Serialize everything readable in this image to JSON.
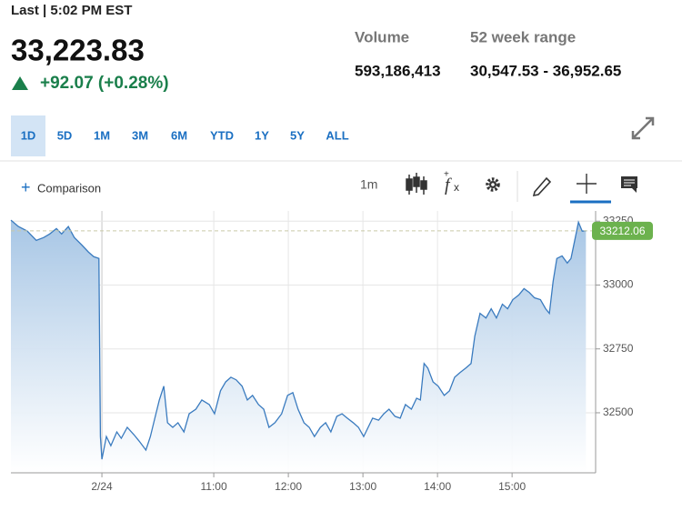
{
  "header": {
    "last_label": "Last | 5:02 PM EST",
    "price": "33,223.83",
    "change": "+92.07 (+0.28%)",
    "volume_label": "Volume",
    "volume": "593,186,413",
    "range_label": "52 week range",
    "range": "30,547.53 - 36,952.65"
  },
  "tabs": [
    "1D",
    "5D",
    "1M",
    "3M",
    "6M",
    "YTD",
    "1Y",
    "5Y",
    "ALL"
  ],
  "selected_tab": 0,
  "toolbar": {
    "comparison": "Comparison",
    "interval": "1m"
  },
  "chart_data": {
    "type": "line",
    "color": "#3a7bbf",
    "grid": true,
    "x": [
      8.28,
      8.38,
      8.5,
      8.62,
      8.72,
      8.8,
      8.89,
      8.96,
      9.05,
      9.13,
      9.23,
      9.32,
      9.39,
      9.46,
      9.48,
      9.5,
      9.56,
      9.62,
      9.7,
      9.76,
      9.84,
      9.93,
      10.0,
      10.09,
      10.15,
      10.21,
      10.27,
      10.33,
      10.38,
      10.45,
      10.52,
      10.6,
      10.67,
      10.76,
      10.84,
      10.94,
      11.01,
      11.09,
      11.16,
      11.23,
      11.3,
      11.38,
      11.45,
      11.52,
      11.6,
      11.67,
      11.74,
      11.82,
      11.91,
      11.99,
      12.06,
      12.13,
      12.21,
      12.28,
      12.35,
      12.43,
      12.5,
      12.57,
      12.65,
      12.72,
      12.79,
      12.87,
      12.94,
      13.01,
      13.07,
      13.13,
      13.21,
      13.28,
      13.35,
      13.43,
      13.5,
      13.57,
      13.65,
      13.72,
      13.77,
      13.82,
      13.87,
      13.94,
      14.01,
      14.09,
      14.16,
      14.23,
      14.3,
      14.38,
      14.45,
      14.5,
      14.57,
      14.65,
      14.72,
      14.79,
      14.87,
      14.94,
      15.01,
      15.09,
      15.16,
      15.23,
      15.3,
      15.38,
      15.45,
      15.5,
      15.55,
      15.6,
      15.67,
      15.74,
      15.79,
      15.84,
      15.89,
      15.94,
      15.99
    ],
    "values": [
      33254,
      33229,
      33211,
      33175,
      33186,
      33200,
      33221,
      33200,
      33229,
      33186,
      33157,
      33129,
      33111,
      33104,
      32407,
      32318,
      32407,
      32371,
      32425,
      32400,
      32443,
      32414,
      32389,
      32354,
      32407,
      32479,
      32550,
      32604,
      32461,
      32443,
      32461,
      32425,
      32496,
      32514,
      32550,
      32532,
      32496,
      32586,
      32621,
      32639,
      32629,
      32604,
      32550,
      32568,
      32532,
      32514,
      32443,
      32461,
      32496,
      32568,
      32579,
      32514,
      32461,
      32443,
      32407,
      32443,
      32461,
      32425,
      32486,
      32496,
      32479,
      32461,
      32443,
      32407,
      32443,
      32479,
      32471,
      32496,
      32514,
      32486,
      32479,
      32532,
      32514,
      32557,
      32550,
      32693,
      32675,
      32621,
      32604,
      32568,
      32586,
      32639,
      32657,
      32675,
      32693,
      32800,
      32889,
      32871,
      32907,
      32871,
      32925,
      32907,
      32943,
      32961,
      32986,
      32971,
      32950,
      32943,
      32907,
      32889,
      33014,
      33104,
      33114,
      33086,
      33104,
      33175,
      33246,
      33211,
      33212
    ],
    "xlim": [
      8.28,
      16.12
    ],
    "xticks": [
      {
        "value": 9.5,
        "label": "2/24"
      },
      {
        "value": 11,
        "label": "11:00"
      },
      {
        "value": 12,
        "label": "12:00"
      },
      {
        "value": 13,
        "label": "13:00"
      },
      {
        "value": 14,
        "label": "14:00"
      },
      {
        "value": 15,
        "label": "15:00"
      }
    ],
    "ylim": [
      32265,
      33290
    ],
    "yticks": [
      32500,
      32750,
      33000,
      33250
    ],
    "last_value": 33212.06
  }
}
